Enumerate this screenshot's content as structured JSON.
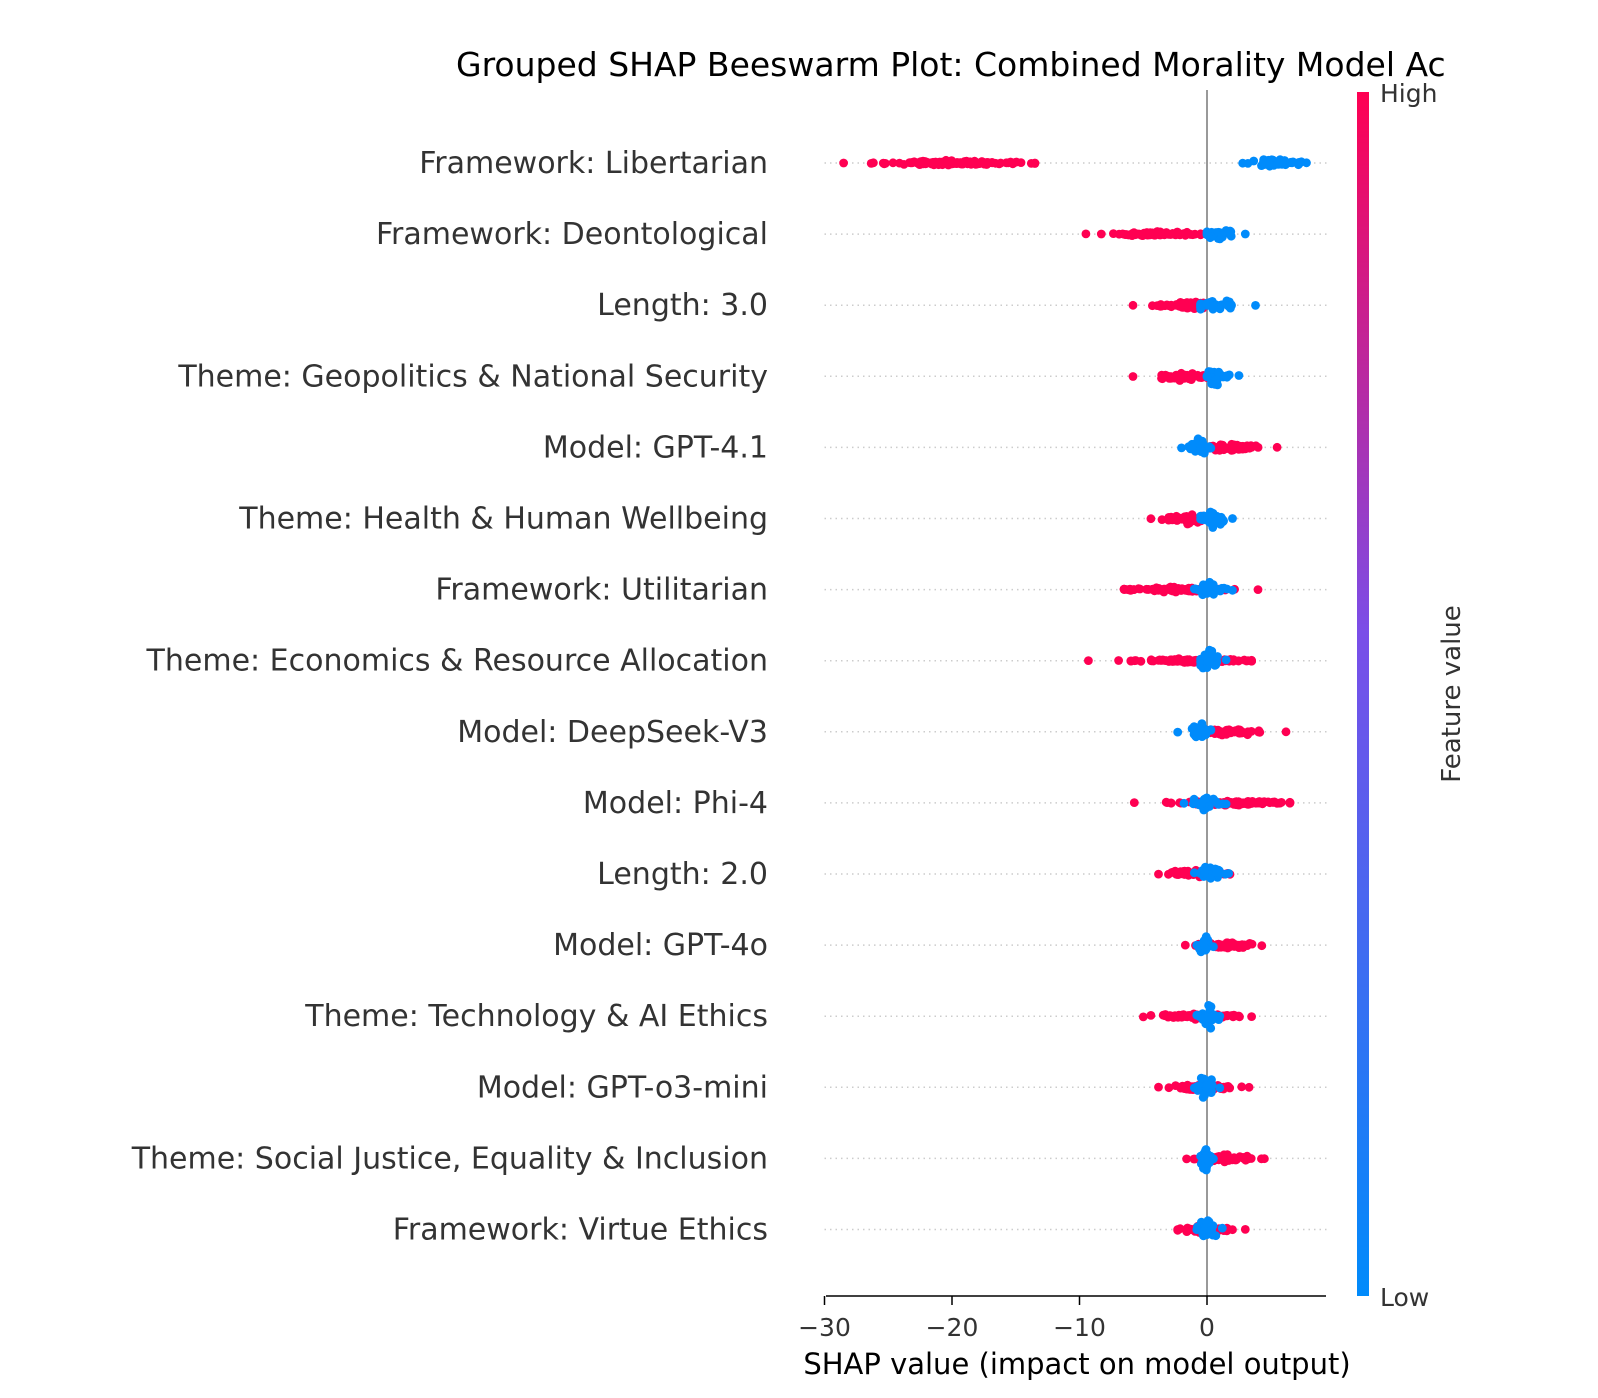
{
  "chart_data": {
    "type": "scatter",
    "subtype": "shap-beeswarm",
    "title": "Grouped SHAP Beeswarm Plot: Combined Morality Model Ac",
    "xlabel": "SHAP value (impact on model output)",
    "ylabel": "",
    "xlim": [
      -30,
      9.5
    ],
    "xticks": [
      {
        "value": -30,
        "label": "−30"
      },
      {
        "value": -20,
        "label": "−20"
      },
      {
        "value": -10,
        "label": "−10"
      },
      {
        "value": 0,
        "label": "0"
      }
    ],
    "colorbar": {
      "label": "Feature value",
      "high_label": "High",
      "low_label": "Low",
      "high_color": "#ff0052",
      "low_color": "#008bfb"
    },
    "features": [
      {
        "name": "Framework: Libertarian",
        "high": {
          "min": -28.5,
          "max": -13.5,
          "center": -20
        },
        "low": {
          "min": 2.8,
          "max": 7.8,
          "center": 5.3
        }
      },
      {
        "name": "Framework: Deontological",
        "high": {
          "min": -9.5,
          "max": -0.5,
          "center": -4
        },
        "low": {
          "min": 0,
          "max": 3,
          "center": 0.9
        }
      },
      {
        "name": "Length: 3.0",
        "high": {
          "min": -5.8,
          "max": 0.5,
          "center": -1.5
        },
        "low": {
          "min": -0.5,
          "max": 3.8,
          "center": 0.6
        }
      },
      {
        "name": "Theme: Geopolitics & National Security",
        "high": {
          "min": -5.8,
          "max": 0,
          "center": -2
        },
        "low": {
          "min": 0,
          "max": 2.5,
          "center": 0.6
        }
      },
      {
        "name": "Model: GPT-4.1",
        "high": {
          "min": -0.3,
          "max": 5.5,
          "center": 2
        },
        "low": {
          "min": -2,
          "max": 0.3,
          "center": -0.6
        }
      },
      {
        "name": "Theme: Health & Human Wellbeing",
        "high": {
          "min": -4.4,
          "max": 0,
          "center": -1.5
        },
        "low": {
          "min": -0.5,
          "max": 2,
          "center": 0.4
        }
      },
      {
        "name": "Framework: Utilitarian",
        "high": {
          "min": -6.5,
          "max": 4,
          "center": -2.5
        },
        "low": {
          "min": -1,
          "max": 2,
          "center": 0.2
        }
      },
      {
        "name": "Theme: Economics & Resource Allocation",
        "high": {
          "min": -9.3,
          "max": 3.5,
          "center": -1
        },
        "low": {
          "min": -0.5,
          "max": 1.5,
          "center": 0.2
        }
      },
      {
        "name": "Model: DeepSeek-V3",
        "high": {
          "min": 0,
          "max": 6.2,
          "center": 2
        },
        "low": {
          "min": -2.3,
          "max": 0.3,
          "center": -0.4
        }
      },
      {
        "name": "Model: Phi-4",
        "high": {
          "min": -5.7,
          "max": 6.5,
          "center": 2
        },
        "low": {
          "min": -1.8,
          "max": 1.5,
          "center": -0.2
        }
      },
      {
        "name": "Length: 2.0",
        "high": {
          "min": -3.8,
          "max": 1.8,
          "center": -1
        },
        "low": {
          "min": -1,
          "max": 1.7,
          "center": 0.2
        }
      },
      {
        "name": "Model: GPT-4o",
        "high": {
          "min": -1.7,
          "max": 4.3,
          "center": 1.8
        },
        "low": {
          "min": -0.8,
          "max": 0.5,
          "center": -0.2
        }
      },
      {
        "name": "Theme: Technology & AI Ethics",
        "high": {
          "min": -5,
          "max": 3.5,
          "center": -1
        },
        "low": {
          "min": -0.8,
          "max": 1,
          "center": 0.1
        }
      },
      {
        "name": "Model: GPT-o3-mini",
        "high": {
          "min": -3.8,
          "max": 3.3,
          "center": 0
        },
        "low": {
          "min": -1,
          "max": 1,
          "center": -0.1
        }
      },
      {
        "name": "Theme: Social Justice, Equality & Inclusion",
        "high": {
          "min": -1.6,
          "max": 4.5,
          "center": 1.5
        },
        "low": {
          "min": -0.5,
          "max": 0.5,
          "center": -0.1
        }
      },
      {
        "name": "Framework: Virtue Ethics",
        "high": {
          "min": -2.3,
          "max": 3,
          "center": 0
        },
        "low": {
          "min": -0.8,
          "max": 1.2,
          "center": 0
        }
      }
    ]
  }
}
